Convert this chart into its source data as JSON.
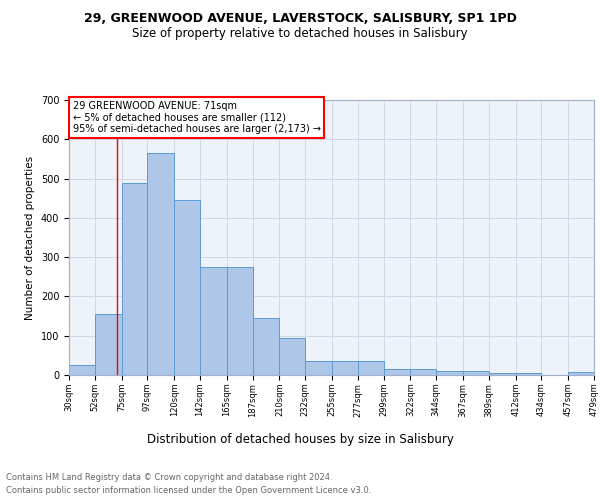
{
  "title1": "29, GREENWOOD AVENUE, LAVERSTOCK, SALISBURY, SP1 1PD",
  "title2": "Size of property relative to detached houses in Salisbury",
  "xlabel": "Distribution of detached houses by size in Salisbury",
  "ylabel": "Number of detached properties",
  "footnote1": "Contains HM Land Registry data © Crown copyright and database right 2024.",
  "footnote2": "Contains public sector information licensed under the Open Government Licence v3.0.",
  "annotation_line1": "29 GREENWOOD AVENUE: 71sqm",
  "annotation_line2": "← 5% of detached houses are smaller (112)",
  "annotation_line3": "95% of semi-detached houses are larger (2,173) →",
  "bar_left_edges": [
    30,
    52,
    75,
    97,
    120,
    142,
    165,
    187,
    210,
    232,
    255,
    277,
    299,
    322,
    344,
    367,
    389,
    412,
    434,
    457
  ],
  "bar_widths": [
    22,
    23,
    22,
    23,
    22,
    23,
    22,
    23,
    22,
    23,
    22,
    22,
    23,
    22,
    23,
    22,
    23,
    22,
    23,
    22
  ],
  "bar_heights": [
    25,
    155,
    490,
    565,
    445,
    275,
    275,
    145,
    95,
    35,
    35,
    35,
    15,
    15,
    10,
    10,
    5,
    5,
    0,
    8
  ],
  "x_tick_labels": [
    "30sqm",
    "52sqm",
    "75sqm",
    "97sqm",
    "120sqm",
    "142sqm",
    "165sqm",
    "187sqm",
    "210sqm",
    "232sqm",
    "255sqm",
    "277sqm",
    "299sqm",
    "322sqm",
    "344sqm",
    "367sqm",
    "389sqm",
    "412sqm",
    "434sqm",
    "457sqm",
    "479sqm"
  ],
  "x_tick_positions": [
    30,
    52,
    75,
    97,
    120,
    142,
    165,
    187,
    210,
    232,
    255,
    277,
    299,
    322,
    344,
    367,
    389,
    412,
    434,
    457,
    479
  ],
  "ylim": [
    0,
    700
  ],
  "bar_color": "#aec6e8",
  "bar_edge_color": "#5b9bd5",
  "grid_color": "#d0d8e8",
  "red_line_x": 71,
  "bg_color": "#eef2f9",
  "title1_fontsize": 9,
  "title2_fontsize": 8.5,
  "xlabel_fontsize": 8.5,
  "ylabel_fontsize": 7.5,
  "tick_fontsize": 6,
  "footnote_fontsize": 6,
  "footnote_color": "#666666"
}
